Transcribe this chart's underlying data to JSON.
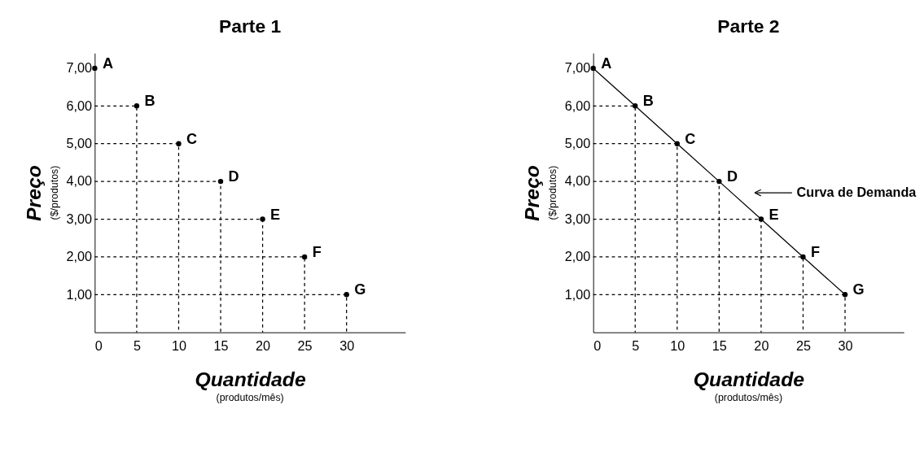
{
  "chart_data": [
    {
      "type": "scatter",
      "title": "Parte 1",
      "xlabel": "Quantidade",
      "ylabel": "Preço",
      "xlim": [
        0,
        37
      ],
      "ylim": [
        0,
        7.4
      ],
      "xticks": [
        0,
        5,
        10,
        15,
        20,
        25,
        30
      ],
      "yticks": [
        {
          "value": 1,
          "label": "1,00"
        },
        {
          "value": 2,
          "label": "2,00"
        },
        {
          "value": 3,
          "label": "3,00"
        },
        {
          "value": 4,
          "label": "4,00"
        },
        {
          "value": 5,
          "label": "5,00"
        },
        {
          "value": 6,
          "label": "6,00"
        },
        {
          "value": 7,
          "label": "7,00"
        }
      ],
      "grid": false,
      "series": [
        {
          "marker": "circle",
          "color": "#000000",
          "x": [
            0,
            5,
            10,
            15,
            20,
            25,
            30
          ],
          "values": [
            7,
            6,
            5,
            4,
            3,
            2,
            1
          ]
        },
        {
          "type": "line",
          "line_style": "dashed",
          "color": "#000000",
          "x": [
            0,
            5,
            5
          ],
          "values": [
            6,
            6,
            0
          ]
        },
        {
          "type": "line",
          "line_style": "dashed",
          "color": "#000000",
          "x": [
            0,
            10,
            10
          ],
          "values": [
            5,
            5,
            0
          ]
        },
        {
          "type": "line",
          "line_style": "dashed",
          "color": "#000000",
          "x": [
            0,
            15,
            15
          ],
          "values": [
            4,
            4,
            0
          ]
        },
        {
          "type": "line",
          "line_style": "dashed",
          "color": "#000000",
          "x": [
            0,
            20,
            20
          ],
          "values": [
            3,
            3,
            0
          ]
        },
        {
          "type": "line",
          "line_style": "dashed",
          "color": "#000000",
          "x": [
            0,
            25,
            25
          ],
          "values": [
            2,
            2,
            0
          ]
        },
        {
          "type": "line",
          "line_style": "dashed",
          "color": "#000000",
          "x": [
            0,
            30,
            30
          ],
          "values": [
            1,
            1,
            0
          ]
        }
      ],
      "annotations": [
        "($/produtos)",
        "(produtos/mês)",
        {
          "text": "A",
          "x": 0,
          "y": 7
        },
        {
          "text": "B",
          "x": 5,
          "y": 6
        },
        {
          "text": "C",
          "x": 10,
          "y": 5
        },
        {
          "text": "D",
          "x": 15,
          "y": 4
        },
        {
          "text": "E",
          "x": 20,
          "y": 3
        },
        {
          "text": "F",
          "x": 25,
          "y": 2
        },
        {
          "text": "G",
          "x": 30,
          "y": 1
        }
      ]
    },
    {
      "type": "scatter",
      "title": "Parte 2",
      "xlabel": "Quantidade",
      "ylabel": "Preço",
      "xlim": [
        0,
        37
      ],
      "ylim": [
        0,
        7.4
      ],
      "xticks": [
        0,
        5,
        10,
        15,
        20,
        25,
        30
      ],
      "yticks": [
        {
          "value": 1,
          "label": "1,00"
        },
        {
          "value": 2,
          "label": "2,00"
        },
        {
          "value": 3,
          "label": "3,00"
        },
        {
          "value": 4,
          "label": "4,00"
        },
        {
          "value": 5,
          "label": "5,00"
        },
        {
          "value": 6,
          "label": "6,00"
        },
        {
          "value": 7,
          "label": "7,00"
        }
      ],
      "grid": false,
      "series": [
        {
          "type": "line",
          "line_style": "solid",
          "color": "#000000",
          "x": [
            0,
            5,
            10,
            15,
            20,
            25,
            30
          ],
          "values": [
            7,
            6,
            5,
            4,
            3,
            2,
            1
          ]
        },
        {
          "marker": "circle",
          "color": "#000000",
          "x": [
            0,
            5,
            10,
            15,
            20,
            25,
            30
          ],
          "values": [
            7,
            6,
            5,
            4,
            3,
            2,
            1
          ]
        },
        {
          "type": "line",
          "line_style": "dashed",
          "color": "#000000",
          "x": [
            0,
            5,
            5
          ],
          "values": [
            6,
            6,
            0
          ]
        },
        {
          "type": "line",
          "line_style": "dashed",
          "color": "#000000",
          "x": [
            0,
            10,
            10
          ],
          "values": [
            5,
            5,
            0
          ]
        },
        {
          "type": "line",
          "line_style": "dashed",
          "color": "#000000",
          "x": [
            0,
            15,
            15
          ],
          "values": [
            4,
            4,
            0
          ]
        },
        {
          "type": "line",
          "line_style": "dashed",
          "color": "#000000",
          "x": [
            0,
            20,
            20
          ],
          "values": [
            3,
            3,
            0
          ]
        },
        {
          "type": "line",
          "line_style": "dashed",
          "color": "#000000",
          "x": [
            0,
            25,
            25
          ],
          "values": [
            2,
            2,
            0
          ]
        },
        {
          "type": "line",
          "line_style": "dashed",
          "color": "#000000",
          "x": [
            0,
            30,
            30
          ],
          "values": [
            1,
            1,
            0
          ]
        }
      ],
      "annotations": [
        "($/produtos)",
        "(produtos/mês)",
        {
          "text": "A",
          "x": 0,
          "y": 7
        },
        {
          "text": "B",
          "x": 5,
          "y": 6
        },
        {
          "text": "C",
          "x": 10,
          "y": 5
        },
        {
          "text": "D",
          "x": 15,
          "y": 4
        },
        {
          "text": "E",
          "x": 20,
          "y": 3
        },
        {
          "text": "F",
          "x": 25,
          "y": 2
        },
        {
          "text": "G",
          "x": 30,
          "y": 1
        },
        "Curva de Demanda"
      ]
    }
  ]
}
